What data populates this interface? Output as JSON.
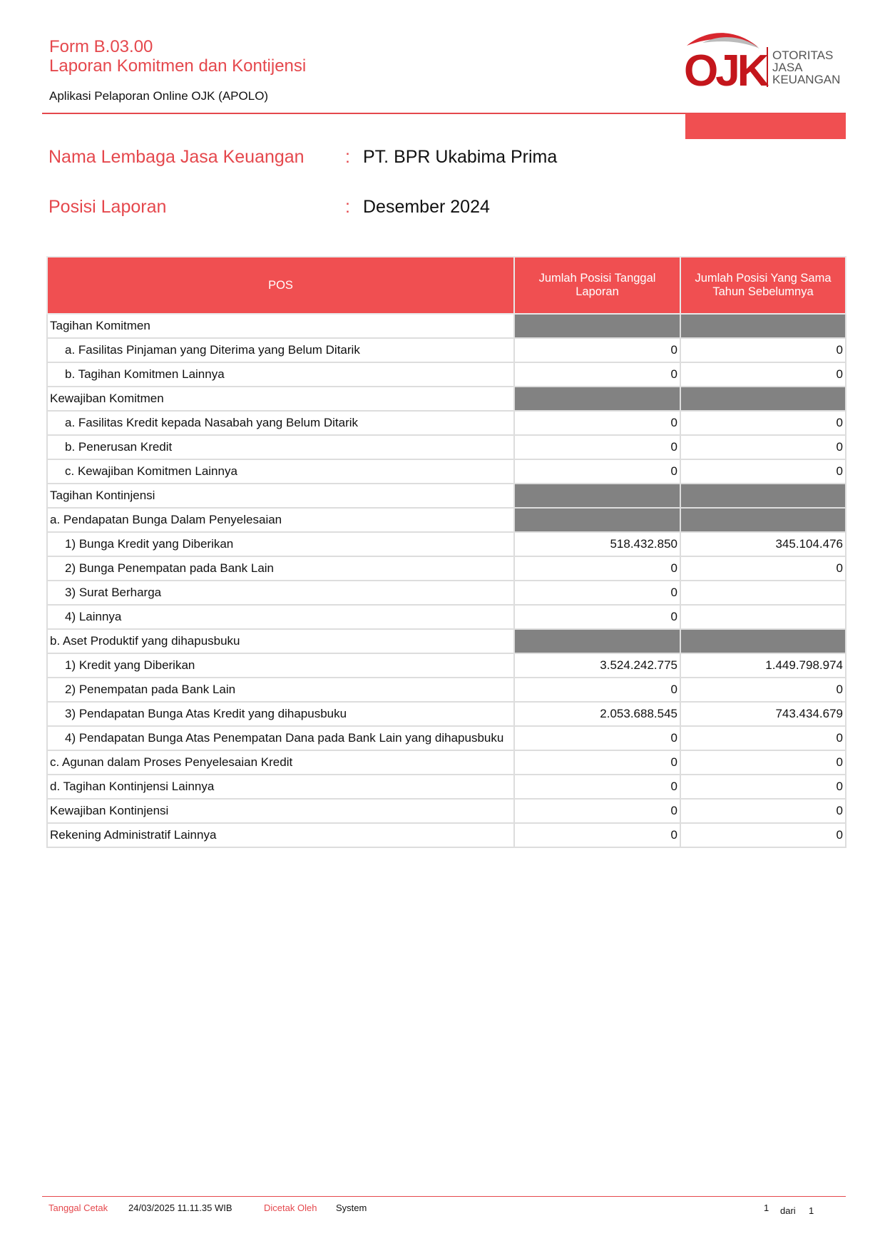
{
  "header": {
    "form": "Form B.03.00",
    "title": "Laporan Komitmen dan Kontijensi",
    "app": "Aplikasi Pelaporan Online OJK (APOLO)"
  },
  "logo": {
    "mark": "OJK",
    "lines": [
      "OTORITAS",
      "JASA",
      "KEUANGAN"
    ]
  },
  "info": [
    {
      "label": "Nama Lembaga Jasa Keuangan",
      "separator": ":",
      "value": "PT. BPR Ukabima Prima"
    },
    {
      "label": "Posisi Laporan",
      "separator": ":",
      "value": "Desember 2024"
    }
  ],
  "table": {
    "columns": [
      "POS",
      "Jumlah Posisi Tanggal Laporan",
      "Jumlah Posisi Yang Sama Tahun Sebelumnya"
    ],
    "rows": [
      {
        "pos": "Tagihan Komitmen",
        "shaded": true,
        "indented": false,
        "values": [
          null,
          null
        ]
      },
      {
        "pos": "a. Fasilitas Pinjaman yang Diterima yang Belum Ditarik",
        "shaded": false,
        "indented": true,
        "values": [
          "0",
          "0"
        ]
      },
      {
        "pos": "b. Tagihan Komitmen Lainnya",
        "shaded": false,
        "indented": true,
        "values": [
          "0",
          "0"
        ]
      },
      {
        "pos": "Kewajiban Komitmen",
        "shaded": true,
        "indented": false,
        "values": [
          null,
          null
        ]
      },
      {
        "pos": "a. Fasilitas Kredit kepada Nasabah yang Belum Ditarik",
        "shaded": false,
        "indented": true,
        "values": [
          "0",
          "0"
        ]
      },
      {
        "pos": "b. Penerusan Kredit",
        "shaded": false,
        "indented": true,
        "values": [
          "0",
          "0"
        ]
      },
      {
        "pos": "c. Kewajiban Komitmen Lainnya",
        "shaded": false,
        "indented": true,
        "values": [
          "0",
          "0"
        ]
      },
      {
        "pos": "Tagihan Kontinjensi",
        "shaded": true,
        "indented": false,
        "values": [
          null,
          null
        ]
      },
      {
        "pos": "a. Pendapatan Bunga Dalam Penyelesaian",
        "shaded": true,
        "indented": false,
        "values": [
          null,
          null
        ]
      },
      {
        "pos": "1) Bunga Kredit yang Diberikan",
        "shaded": false,
        "indented": true,
        "values": [
          "518.432.850",
          "345.104.476"
        ]
      },
      {
        "pos": "2) Bunga Penempatan pada Bank Lain",
        "shaded": false,
        "indented": true,
        "values": [
          "0",
          "0"
        ]
      },
      {
        "pos": "3) Surat Berharga",
        "shaded": false,
        "indented": true,
        "values": [
          "0",
          null
        ]
      },
      {
        "pos": "4) Lainnya",
        "shaded": false,
        "indented": true,
        "values": [
          "0",
          null
        ]
      },
      {
        "pos": "b. Aset Produktif yang dihapusbuku",
        "shaded": true,
        "indented": false,
        "values": [
          null,
          null
        ]
      },
      {
        "pos": "1) Kredit yang Diberikan",
        "shaded": false,
        "indented": true,
        "values": [
          "3.524.242.775",
          "1.449.798.974"
        ]
      },
      {
        "pos": "2) Penempatan pada Bank Lain",
        "shaded": false,
        "indented": true,
        "values": [
          "0",
          "0"
        ]
      },
      {
        "pos": "3) Pendapatan Bunga Atas Kredit yang dihapusbuku",
        "shaded": false,
        "indented": true,
        "values": [
          "2.053.688.545",
          "743.434.679"
        ]
      },
      {
        "pos": "4) Pendapatan Bunga Atas Penempatan Dana pada Bank Lain yang dihapusbuku",
        "shaded": false,
        "indented": true,
        "values": [
          "0",
          "0"
        ]
      },
      {
        "pos": "c. Agunan dalam Proses Penyelesaian Kredit",
        "shaded": false,
        "indented": false,
        "values": [
          "0",
          "0"
        ]
      },
      {
        "pos": "d. Tagihan Kontinjensi Lainnya",
        "shaded": false,
        "indented": false,
        "values": [
          "0",
          "0"
        ]
      },
      {
        "pos": "Kewajiban Kontinjensi",
        "shaded": false,
        "indented": false,
        "values": [
          "0",
          "0"
        ]
      },
      {
        "pos": "Rekening Administratif Lainnya",
        "shaded": false,
        "indented": false,
        "values": [
          "0",
          "0"
        ]
      }
    ]
  },
  "footer": {
    "printed_label": "Tanggal Cetak",
    "printed_value": "24/03/2025 11.11.35 WIB",
    "by_label": "Dicetak Oleh",
    "by_value": "System",
    "page": "1",
    "of": "dari",
    "pages": "1"
  }
}
